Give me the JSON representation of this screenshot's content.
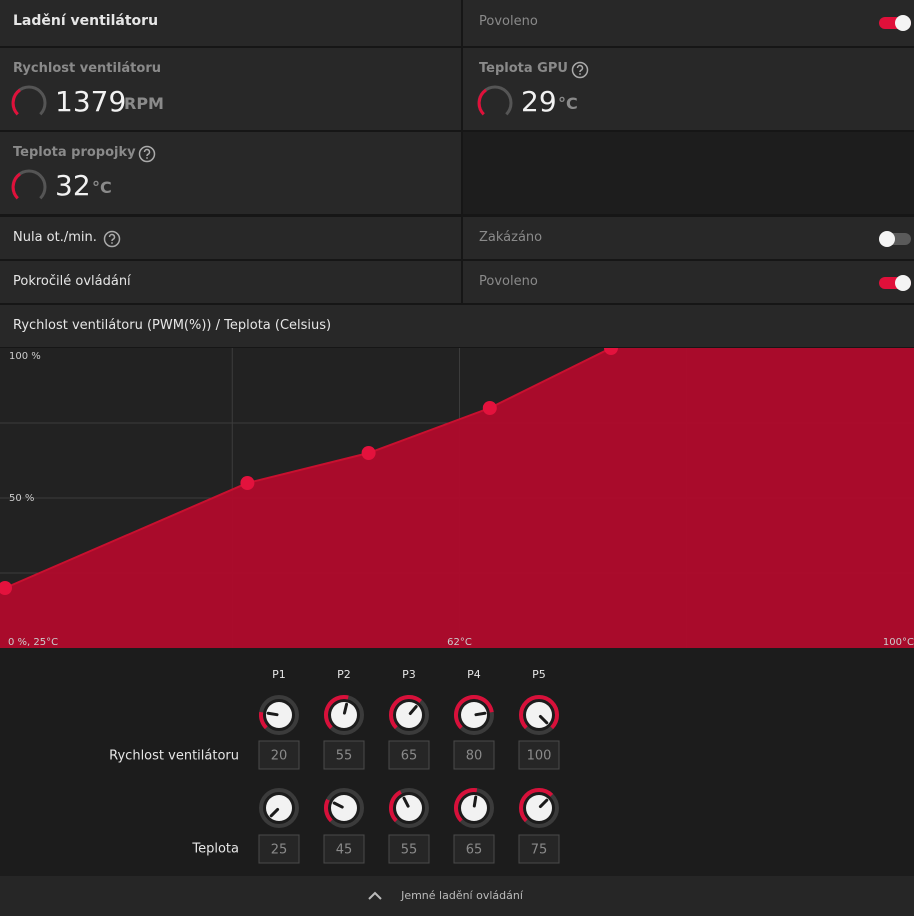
{
  "fan_tuning": {
    "title": "Ladění ventilátoru",
    "status": "Povoleno",
    "enabled": true
  },
  "metrics": [
    {
      "label": "Rychlost ventilátoru",
      "value": 1379,
      "unit": "RPM"
    },
    {
      "label": "Teplota GPU",
      "value": 29,
      "unit": "°C"
    },
    {
      "label": "Teplota propojky",
      "value": 32,
      "unit": "°C"
    }
  ],
  "zero_rpm": {
    "label": "Nula ot./min.",
    "status": "Zakázáno",
    "enabled": false
  },
  "advanced_control": {
    "label": "Pokročilé ovládání",
    "status": "Povoleno",
    "enabled": true
  },
  "fan_curve": {
    "title": "Rychlost ventilátoru (PWM(%)) / Teplota (Celsius)",
    "xlim": [
      25,
      100
    ],
    "ylim": [
      0,
      100
    ],
    "xticks": [
      {
        "value": 25,
        "label": "0 %, 25°C"
      },
      {
        "value": 62.5,
        "label": "62°C"
      },
      {
        "value": 100,
        "label": "100°C"
      }
    ],
    "yticks": [
      {
        "value": 100,
        "label": "100 %"
      },
      {
        "value": 50,
        "label": "50 %"
      }
    ],
    "xgrid": [
      43.75,
      62.5,
      81.25
    ],
    "ygrid": [
      25,
      50,
      75
    ],
    "speed_label": "Rychlost ventilátoru",
    "temperature_label": "Teplota",
    "points": [
      {
        "name": "P1",
        "speed": 20,
        "temperature": 25
      },
      {
        "name": "P2",
        "speed": 55,
        "temperature": 45
      },
      {
        "name": "P3",
        "speed": 65,
        "temperature": 55
      },
      {
        "name": "P4",
        "speed": 80,
        "temperature": 65
      },
      {
        "name": "P5",
        "speed": 100,
        "temperature": 75
      }
    ]
  },
  "footer": "Jemné ladění ovládání"
}
